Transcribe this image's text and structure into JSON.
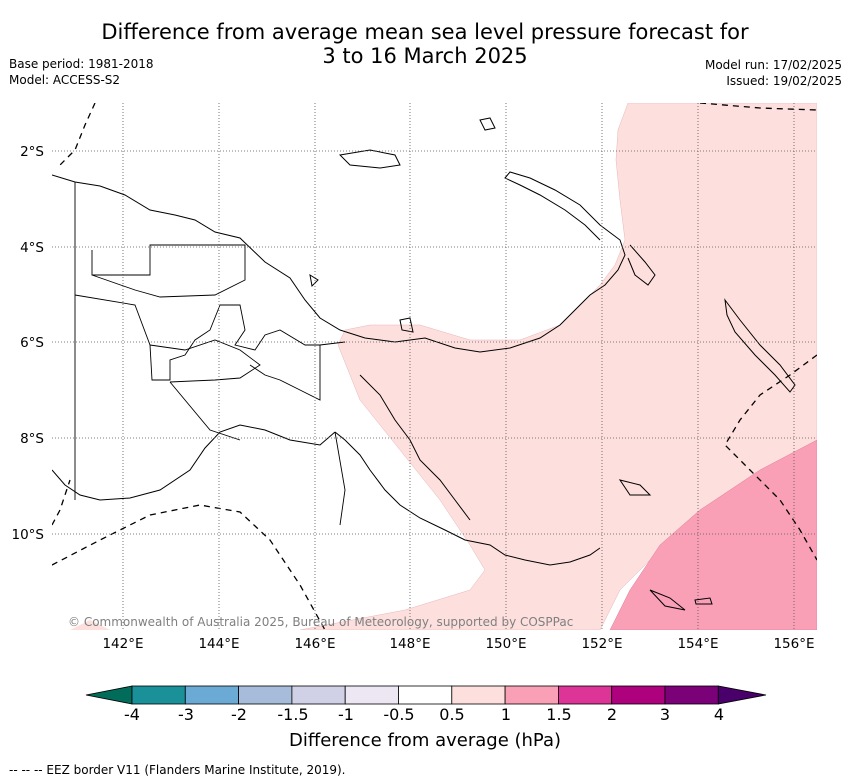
{
  "title_line1": "Difference from average mean sea level pressure forecast for",
  "title_line2": "3 to 16 March 2025",
  "meta_left": [
    "Base period: 1981-2018",
    "Model: ACCESS-S2"
  ],
  "meta_right": [
    "Model run: 17/02/2025",
    "Issued: 19/02/2025"
  ],
  "copyright": "© Commonwealth of Australia 2025, Bureau of Meteorology, supported by COSPPac",
  "map": {
    "longitude_range": [
      140.6,
      156.5
    ],
    "latitude_range": [
      -12.0,
      -1.0
    ],
    "lon_ticks": [
      "142°E",
      "144°E",
      "146°E",
      "148°E",
      "150°E",
      "152°E",
      "154°E",
      "156°E"
    ],
    "lat_ticks": [
      "2°S",
      "4°S",
      "6°S",
      "8°S",
      "10°S"
    ],
    "gridlines": "dotted",
    "anomaly_regions": [
      {
        "category": "0.5 to 1 hPa",
        "color": "#fde0de",
        "location": "Solomon Sea, Bismarck Sea, Coral Sea north and east of Papua New Guinea"
      },
      {
        "category": "1 to 1.5 hPa",
        "color": "#f9a0b7",
        "location": "south-east corner, Coral Sea / Solomon Islands"
      }
    ]
  },
  "colorbar": {
    "labels": [
      "-4",
      "-3",
      "-2",
      "-1.5",
      "-1",
      "-0.5",
      "0.5",
      "1",
      "1.5",
      "2",
      "3",
      "4"
    ],
    "colors": [
      "#1a9099",
      "#6aaad4",
      "#a7bcdb",
      "#d0d1e6",
      "#ece7f2",
      "#ffffff",
      "#fde0de",
      "#f9a0b7",
      "#dd3497",
      "#ae017e",
      "#7a0177"
    ],
    "under_color": "#016c59",
    "over_color": "#49006a",
    "title": "Difference from average (hPa)"
  },
  "footer": "--  --  -- EEZ border V11 (Flanders Marine Institute, 2019)."
}
